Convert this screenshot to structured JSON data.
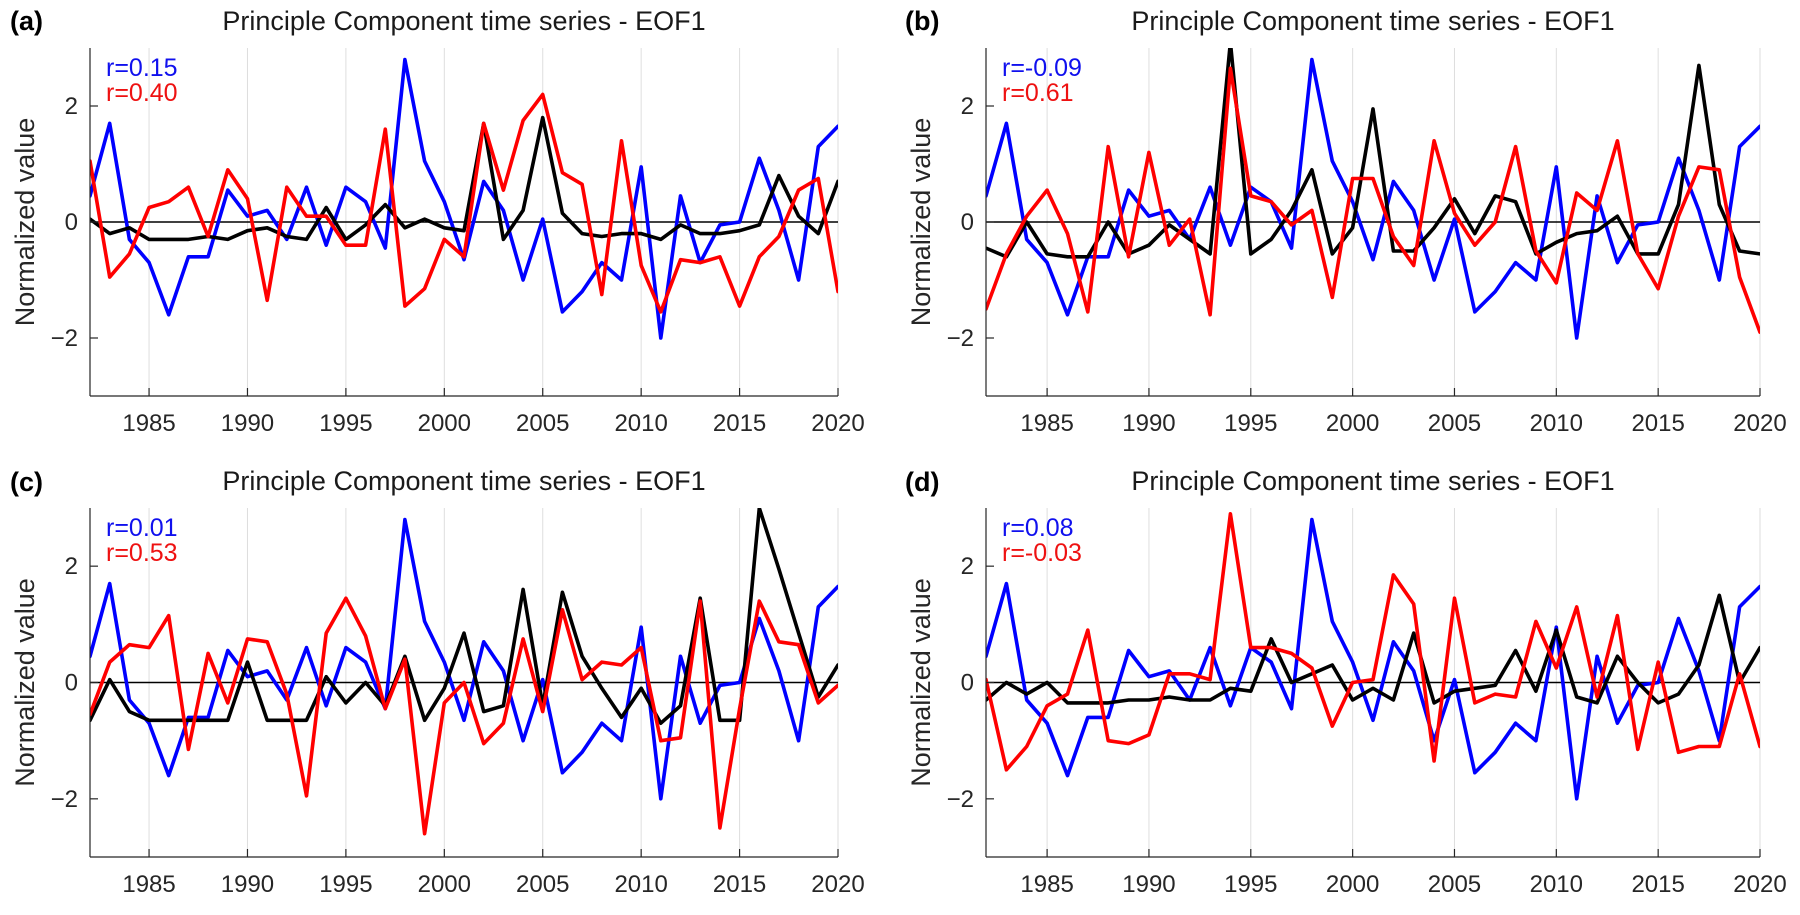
{
  "chart_data": [
    {
      "type": "line",
      "panel_label": "(a)",
      "title": "Principle Component time series - EOF1",
      "xlabel": "",
      "ylabel": "Normalized value",
      "xlim": [
        1982,
        2020
      ],
      "ylim": [
        -3,
        3
      ],
      "x_ticks": [
        1985,
        1990,
        1995,
        2000,
        2005,
        2010,
        2015,
        2020
      ],
      "y_ticks": [
        -2,
        0,
        2
      ],
      "grid": "vertical",
      "x": [
        1982,
        1983,
        1984,
        1985,
        1986,
        1987,
        1988,
        1989,
        1990,
        1991,
        1992,
        1993,
        1994,
        1995,
        1996,
        1997,
        1998,
        1999,
        2000,
        2001,
        2002,
        2003,
        2004,
        2005,
        2006,
        2007,
        2008,
        2009,
        2010,
        2011,
        2012,
        2013,
        2014,
        2015,
        2016,
        2017,
        2018,
        2019,
        2020
      ],
      "annotations": [
        {
          "text": "r=0.15",
          "color": "#1010ee"
        },
        {
          "text": "r=0.40",
          "color": "#ee1111"
        }
      ],
      "series": [
        {
          "color": "#0000ff",
          "values": [
            0.45,
            1.7,
            -0.3,
            -0.7,
            -1.6,
            -0.6,
            -0.6,
            0.55,
            0.1,
            0.2,
            -0.3,
            0.6,
            -0.4,
            0.6,
            0.35,
            -0.45,
            2.8,
            1.05,
            0.35,
            -0.65,
            0.7,
            0.2,
            -1.0,
            0.05,
            -1.55,
            -1.2,
            -0.7,
            -1.0,
            0.95,
            -2.0,
            0.45,
            -0.7,
            -0.05,
            0.0,
            1.1,
            0.2,
            -1.0,
            1.3,
            1.65
          ]
        },
        {
          "color": "#000000",
          "values": [
            0.05,
            -0.2,
            -0.1,
            -0.3,
            -0.3,
            -0.3,
            -0.25,
            -0.3,
            -0.15,
            -0.1,
            -0.25,
            -0.3,
            0.25,
            -0.3,
            -0.05,
            0.3,
            -0.1,
            0.05,
            -0.1,
            -0.15,
            1.7,
            -0.3,
            0.2,
            1.8,
            0.15,
            -0.2,
            -0.25,
            -0.2,
            -0.2,
            -0.3,
            -0.05,
            -0.2,
            -0.2,
            -0.15,
            -0.05,
            0.8,
            0.1,
            -0.2,
            0.7
          ]
        },
        {
          "color": "#ff0000",
          "values": [
            1.05,
            -0.95,
            -0.55,
            0.25,
            0.35,
            0.6,
            -0.25,
            0.9,
            0.4,
            -1.35,
            0.6,
            0.1,
            0.1,
            -0.4,
            -0.4,
            1.6,
            -1.45,
            -1.15,
            -0.3,
            -0.6,
            1.7,
            0.55,
            1.75,
            2.2,
            0.85,
            0.65,
            -1.25,
            1.4,
            -0.75,
            -1.55,
            -0.65,
            -0.7,
            -0.6,
            -1.45,
            -0.6,
            -0.25,
            0.55,
            0.75,
            -1.2
          ]
        }
      ]
    },
    {
      "type": "line",
      "panel_label": "(b)",
      "title": "Principle Component time series - EOF1",
      "xlabel": "",
      "ylabel": "Normalized value",
      "xlim": [
        1982,
        2020
      ],
      "ylim": [
        -3,
        3
      ],
      "x_ticks": [
        1985,
        1990,
        1995,
        2000,
        2005,
        2010,
        2015,
        2020
      ],
      "y_ticks": [
        -2,
        0,
        2
      ],
      "grid": "vertical",
      "x": [
        1982,
        1983,
        1984,
        1985,
        1986,
        1987,
        1988,
        1989,
        1990,
        1991,
        1992,
        1993,
        1994,
        1995,
        1996,
        1997,
        1998,
        1999,
        2000,
        2001,
        2002,
        2003,
        2004,
        2005,
        2006,
        2007,
        2008,
        2009,
        2010,
        2011,
        2012,
        2013,
        2014,
        2015,
        2016,
        2017,
        2018,
        2019,
        2020
      ],
      "annotations": [
        {
          "text": "r=-0.09",
          "color": "#1010ee"
        },
        {
          "text": "r=0.61",
          "color": "#ee1111"
        }
      ],
      "series": [
        {
          "color": "#0000ff",
          "values": [
            0.45,
            1.7,
            -0.3,
            -0.7,
            -1.6,
            -0.6,
            -0.6,
            0.55,
            0.1,
            0.2,
            -0.3,
            0.6,
            -0.4,
            0.6,
            0.35,
            -0.45,
            2.8,
            1.05,
            0.35,
            -0.65,
            0.7,
            0.2,
            -1.0,
            0.05,
            -1.55,
            -1.2,
            -0.7,
            -1.0,
            0.95,
            -2.0,
            0.45,
            -0.7,
            -0.05,
            0.0,
            1.1,
            0.2,
            -1.0,
            1.3,
            1.65
          ]
        },
        {
          "color": "#000000",
          "values": [
            -0.45,
            -0.6,
            0.0,
            -0.55,
            -0.6,
            -0.6,
            0.0,
            -0.55,
            -0.4,
            -0.05,
            -0.3,
            -0.55,
            3.1,
            -0.55,
            -0.3,
            0.2,
            0.9,
            -0.55,
            -0.1,
            1.95,
            -0.5,
            -0.5,
            -0.1,
            0.4,
            -0.2,
            0.45,
            0.35,
            -0.55,
            -0.35,
            -0.2,
            -0.15,
            0.1,
            -0.55,
            -0.55,
            0.3,
            2.7,
            0.3,
            -0.5,
            -0.55
          ]
        },
        {
          "color": "#ff0000",
          "values": [
            -1.5,
            -0.55,
            0.1,
            0.55,
            -0.2,
            -1.55,
            1.3,
            -0.6,
            1.2,
            -0.4,
            0.05,
            -1.6,
            2.65,
            0.45,
            0.35,
            -0.05,
            0.2,
            -1.3,
            0.75,
            0.75,
            -0.25,
            -0.75,
            1.4,
            0.15,
            -0.4,
            0.0,
            1.3,
            -0.5,
            -1.05,
            0.5,
            0.2,
            1.4,
            -0.55,
            -1.15,
            0.1,
            0.95,
            0.9,
            -0.95,
            -1.9
          ]
        }
      ]
    },
    {
      "type": "line",
      "panel_label": "(c)",
      "title": "Principle Component time series - EOF1",
      "xlabel": "",
      "ylabel": "Normalized value",
      "xlim": [
        1982,
        2020
      ],
      "ylim": [
        -3,
        3
      ],
      "x_ticks": [
        1985,
        1990,
        1995,
        2000,
        2005,
        2010,
        2015,
        2020
      ],
      "y_ticks": [
        -2,
        0,
        2
      ],
      "grid": "vertical",
      "x": [
        1982,
        1983,
        1984,
        1985,
        1986,
        1987,
        1988,
        1989,
        1990,
        1991,
        1992,
        1993,
        1994,
        1995,
        1996,
        1997,
        1998,
        1999,
        2000,
        2001,
        2002,
        2003,
        2004,
        2005,
        2006,
        2007,
        2008,
        2009,
        2010,
        2011,
        2012,
        2013,
        2014,
        2015,
        2016,
        2017,
        2018,
        2019,
        2020
      ],
      "annotations": [
        {
          "text": "r=0.01",
          "color": "#1010ee"
        },
        {
          "text": "r=0.53",
          "color": "#ee1111"
        }
      ],
      "series": [
        {
          "color": "#0000ff",
          "values": [
            0.45,
            1.7,
            -0.3,
            -0.7,
            -1.6,
            -0.6,
            -0.6,
            0.55,
            0.1,
            0.2,
            -0.3,
            0.6,
            -0.4,
            0.6,
            0.35,
            -0.45,
            2.8,
            1.05,
            0.35,
            -0.65,
            0.7,
            0.2,
            -1.0,
            0.05,
            -1.55,
            -1.2,
            -0.7,
            -1.0,
            0.95,
            -2.0,
            0.45,
            -0.7,
            -0.05,
            0.0,
            1.1,
            0.2,
            -1.0,
            1.3,
            1.65
          ]
        },
        {
          "color": "#000000",
          "values": [
            -0.65,
            0.05,
            -0.5,
            -0.65,
            -0.65,
            -0.65,
            -0.65,
            -0.65,
            0.35,
            -0.65,
            -0.65,
            -0.65,
            0.1,
            -0.35,
            0.0,
            -0.4,
            0.45,
            -0.65,
            -0.1,
            0.85,
            -0.5,
            -0.4,
            1.6,
            -0.4,
            1.55,
            0.45,
            -0.1,
            -0.6,
            -0.1,
            -0.7,
            -0.4,
            1.45,
            -0.65,
            -0.65,
            3.0,
            1.95,
            0.85,
            -0.25,
            0.3
          ]
        },
        {
          "color": "#ff0000",
          "values": [
            -0.55,
            0.35,
            0.65,
            0.6,
            1.15,
            -1.15,
            0.5,
            -0.35,
            0.75,
            0.7,
            -0.2,
            -1.95,
            0.85,
            1.45,
            0.8,
            -0.45,
            0.4,
            -2.6,
            -0.35,
            0.0,
            -1.05,
            -0.7,
            0.75,
            -0.5,
            1.25,
            0.05,
            0.35,
            0.3,
            0.6,
            -1.0,
            -0.95,
            1.4,
            -2.5,
            -0.45,
            1.4,
            0.7,
            0.65,
            -0.35,
            -0.05
          ]
        }
      ]
    },
    {
      "type": "line",
      "panel_label": "(d)",
      "title": "Principle Component time series - EOF1",
      "xlabel": "",
      "ylabel": "Normalized value",
      "xlim": [
        1982,
        2020
      ],
      "ylim": [
        -3,
        3
      ],
      "x_ticks": [
        1985,
        1990,
        1995,
        2000,
        2005,
        2010,
        2015,
        2020
      ],
      "y_ticks": [
        -2,
        0,
        2
      ],
      "grid": "vertical",
      "x": [
        1982,
        1983,
        1984,
        1985,
        1986,
        1987,
        1988,
        1989,
        1990,
        1991,
        1992,
        1993,
        1994,
        1995,
        1996,
        1997,
        1998,
        1999,
        2000,
        2001,
        2002,
        2003,
        2004,
        2005,
        2006,
        2007,
        2008,
        2009,
        2010,
        2011,
        2012,
        2013,
        2014,
        2015,
        2016,
        2017,
        2018,
        2019,
        2020
      ],
      "annotations": [
        {
          "text": "r=0.08",
          "color": "#1010ee"
        },
        {
          "text": "r=-0.03",
          "color": "#ee1111"
        }
      ],
      "series": [
        {
          "color": "#0000ff",
          "values": [
            0.45,
            1.7,
            -0.3,
            -0.7,
            -1.6,
            -0.6,
            -0.6,
            0.55,
            0.1,
            0.2,
            -0.3,
            0.6,
            -0.4,
            0.6,
            0.35,
            -0.45,
            2.8,
            1.05,
            0.35,
            -0.65,
            0.7,
            0.2,
            -1.0,
            0.05,
            -1.55,
            -1.2,
            -0.7,
            -1.0,
            0.95,
            -2.0,
            0.45,
            -0.7,
            -0.05,
            0.0,
            1.1,
            0.2,
            -1.0,
            1.3,
            1.65
          ]
        },
        {
          "color": "#000000",
          "values": [
            -0.3,
            0.0,
            -0.2,
            0.0,
            -0.35,
            -0.35,
            -0.35,
            -0.3,
            -0.3,
            -0.25,
            -0.3,
            -0.3,
            -0.1,
            -0.15,
            0.75,
            0.0,
            0.15,
            0.3,
            -0.3,
            -0.1,
            -0.3,
            0.85,
            -0.35,
            -0.15,
            -0.1,
            -0.05,
            0.55,
            -0.15,
            0.9,
            -0.25,
            -0.35,
            0.45,
            0.0,
            -0.35,
            -0.2,
            0.3,
            1.5,
            0.0,
            0.6
          ]
        },
        {
          "color": "#ff0000",
          "values": [
            0.05,
            -1.5,
            -1.1,
            -0.4,
            -0.2,
            0.9,
            -1.0,
            -1.05,
            -0.9,
            0.15,
            0.15,
            0.05,
            2.9,
            0.6,
            0.6,
            0.5,
            0.25,
            -0.75,
            0.0,
            0.05,
            1.85,
            1.35,
            -1.35,
            1.45,
            -0.35,
            -0.2,
            -0.25,
            1.05,
            0.25,
            1.3,
            -0.25,
            1.15,
            -1.15,
            0.35,
            -1.2,
            -1.1,
            -1.1,
            0.15,
            -1.1
          ]
        }
      ]
    }
  ]
}
